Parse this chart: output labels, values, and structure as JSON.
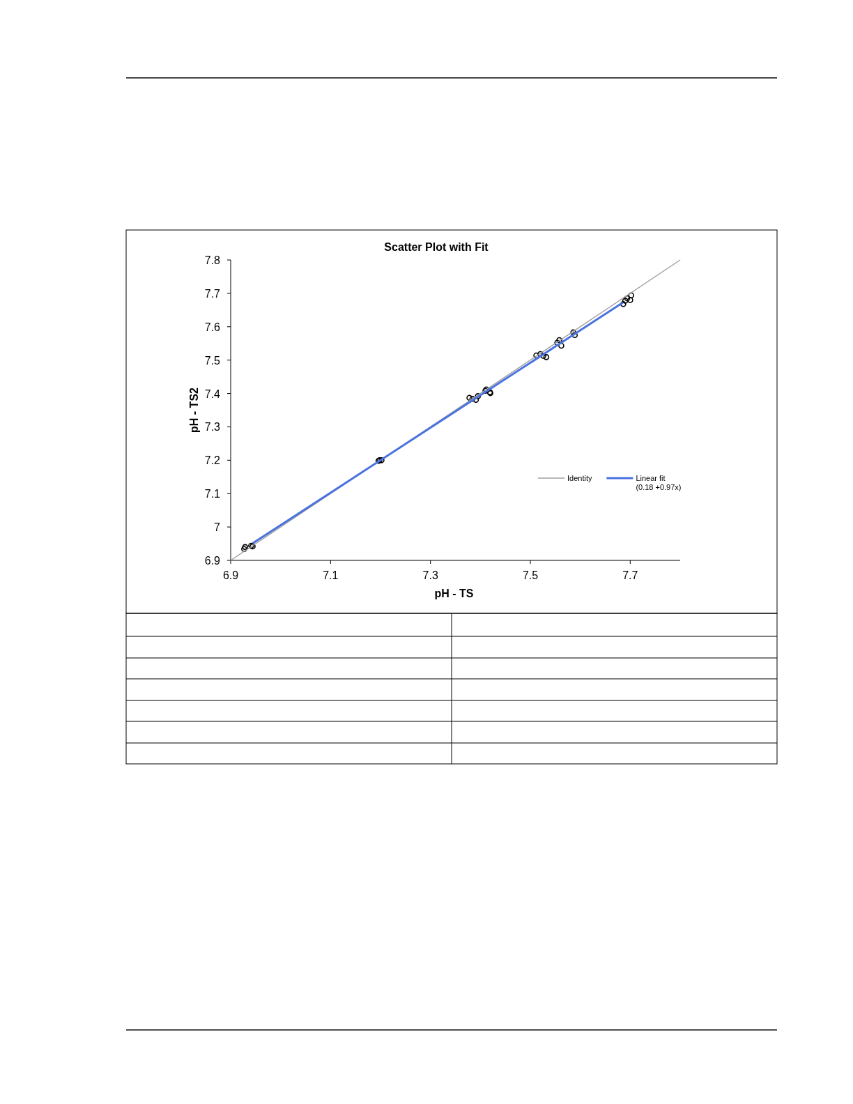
{
  "chart_data": {
    "type": "scatter",
    "title": "Scatter Plot with Fit",
    "xlabel": "pH - TS",
    "ylabel": "pH - TS2",
    "xlim": [
      6.9,
      7.8
    ],
    "xticks": [
      6.9,
      7.1,
      7.3,
      7.5,
      7.7
    ],
    "ylim": [
      6.9,
      7.8
    ],
    "yticks": [
      6.9,
      7.0,
      7.1,
      7.2,
      7.3,
      7.4,
      7.5,
      7.6,
      7.7,
      7.8
    ],
    "grid": false,
    "legend": "bottom right",
    "series": [
      {
        "marker": "circle",
        "color": "#000000",
        "x": [
          6.927,
          6.929,
          6.941,
          6.944,
          7.196,
          7.198,
          7.202,
          7.378,
          7.384,
          7.391,
          7.395,
          7.41,
          7.412,
          7.419,
          7.42,
          7.512,
          7.52,
          7.526,
          7.532,
          7.554,
          7.558,
          7.562,
          7.586,
          7.589,
          7.686,
          7.69,
          7.694,
          7.7,
          7.702
        ],
        "values": [
          6.934,
          6.94,
          6.944,
          6.942,
          7.198,
          7.2,
          7.2,
          7.387,
          7.384,
          7.381,
          7.392,
          7.408,
          7.412,
          7.404,
          7.401,
          7.514,
          7.518,
          7.513,
          7.509,
          7.552,
          7.56,
          7.543,
          7.583,
          7.575,
          7.668,
          7.678,
          7.685,
          7.68,
          7.694
        ]
      },
      {
        "type": "line",
        "marker": "none",
        "name": "Identity",
        "color": "#a0a0a0",
        "x": [
          6.9,
          7.8
        ],
        "values": [
          6.9,
          7.8
        ]
      },
      {
        "type": "line",
        "marker": "none",
        "name": "Linear fit (0.18 +0.97x)",
        "color": "#4a72e0",
        "x": [
          6.944,
          7.685
        ],
        "values": [
          6.951,
          7.672
        ]
      }
    ]
  }
}
